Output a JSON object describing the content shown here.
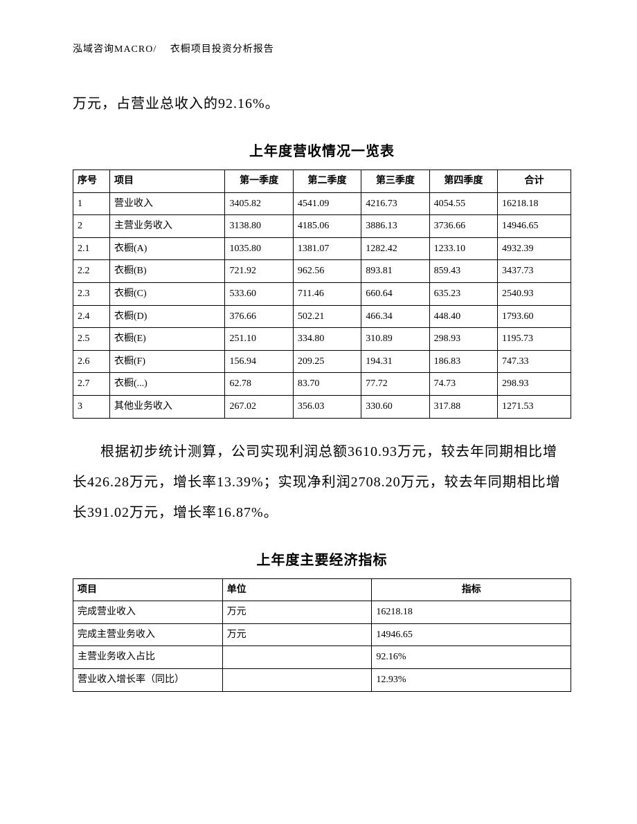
{
  "header": "泓域咨询MACRO/　 衣橱项目投资分析报告",
  "para1": "万元，占营业总收入的92.16%。",
  "table1": {
    "title": "上年度营收情况一览表",
    "columns": [
      "序号",
      "项目",
      "第一季度",
      "第二季度",
      "第三季度",
      "第四季度",
      "合计"
    ],
    "header_align": [
      "left",
      "left",
      "center",
      "center",
      "center",
      "center",
      "center"
    ],
    "rows": [
      [
        "1",
        "营业收入",
        "3405.82",
        "4541.09",
        "4216.73",
        "4054.55",
        "16218.18"
      ],
      [
        "2",
        "主营业务收入",
        "3138.80",
        "4185.06",
        "3886.13",
        "3736.66",
        "14946.65"
      ],
      [
        "2.1",
        "衣橱(A)",
        "1035.80",
        "1381.07",
        "1282.42",
        "1233.10",
        "4932.39"
      ],
      [
        "2.2",
        "衣橱(B)",
        "721.92",
        "962.56",
        "893.81",
        "859.43",
        "3437.73"
      ],
      [
        "2.3",
        "衣橱(C)",
        "533.60",
        "711.46",
        "660.64",
        "635.23",
        "2540.93"
      ],
      [
        "2.4",
        "衣橱(D)",
        "376.66",
        "502.21",
        "466.34",
        "448.40",
        "1793.60"
      ],
      [
        "2.5",
        "衣橱(E)",
        "251.10",
        "334.80",
        "310.89",
        "298.93",
        "1195.73"
      ],
      [
        "2.6",
        "衣橱(F)",
        "156.94",
        "209.25",
        "194.31",
        "186.83",
        "747.33"
      ],
      [
        "2.7",
        "衣橱(...)",
        "62.78",
        "83.70",
        "77.72",
        "74.73",
        "298.93"
      ],
      [
        "3",
        "其他业务收入",
        "267.02",
        "356.03",
        "330.60",
        "317.88",
        "1271.53"
      ]
    ]
  },
  "para2": "根据初步统计测算，公司实现利润总额3610.93万元，较去年同期相比增长426.28万元，增长率13.39%；实现净利润2708.20万元，较去年同期相比增长391.02万元，增长率16.87%。",
  "table2": {
    "title": "上年度主要经济指标",
    "columns": [
      "项目",
      "单位",
      "指标"
    ],
    "header_align": [
      "left",
      "left",
      "center"
    ],
    "rows": [
      [
        "完成营业收入",
        "万元",
        "16218.18"
      ],
      [
        "完成主营业务收入",
        "万元",
        "14946.65"
      ],
      [
        "主营业务收入占比",
        "",
        "92.16%"
      ],
      [
        "营业收入增长率（同比）",
        "",
        "12.93%"
      ]
    ]
  }
}
